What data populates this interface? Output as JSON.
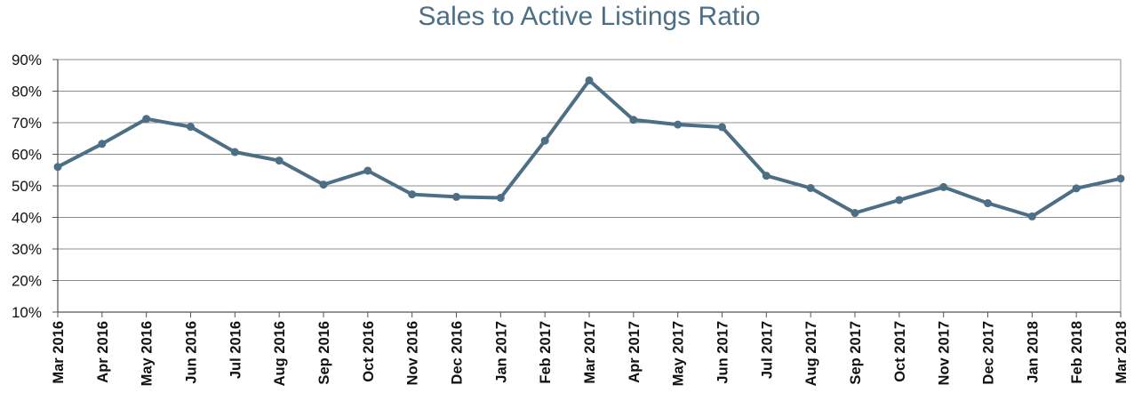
{
  "chart_data": {
    "type": "line",
    "title": "Sales to Active Listings Ratio",
    "xlabel": "",
    "ylabel": "",
    "categories": [
      "Mar 2016",
      "Apr 2016",
      "May 2016",
      "Jun 2016",
      "Jul 2016",
      "Aug 2016",
      "Sep 2016",
      "Oct 2016",
      "Nov 2016",
      "Dec 2016",
      "Jan 2017",
      "Feb 2017",
      "Mar 2017",
      "Apr 2017",
      "May 2017",
      "Jun 2017",
      "Jul 2017",
      "Aug 2017",
      "Sep 2017",
      "Oct 2017",
      "Nov 2017",
      "Dec 2017",
      "Jan 2018",
      "Feb 2018",
      "Mar 2018"
    ],
    "series": [
      {
        "values": [
          56,
          63.3,
          71.2,
          68.7,
          60.7,
          58,
          50.4,
          54.8,
          47.3,
          46.5,
          46.2,
          64.3,
          83.4,
          70.9,
          69.4,
          68.6,
          53.2,
          49.3,
          41.4,
          45.5,
          49.6,
          44.5,
          40.3,
          49.2,
          52.3
        ]
      }
    ],
    "ylim": [
      10,
      90
    ],
    "yticks": [
      "10%",
      "20%",
      "30%",
      "40%",
      "50%",
      "60%",
      "70%",
      "80%",
      "90%"
    ],
    "grid": true,
    "legend": "none",
    "colors": {
      "line": "#4c6f86",
      "grid": "#8c8c8c",
      "axis": "#555555",
      "title": "#4c6f86"
    }
  }
}
